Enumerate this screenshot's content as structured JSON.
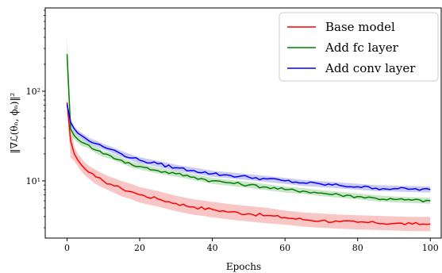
{
  "chart_data": {
    "type": "line",
    "xlabel": "Epochs",
    "ylabel": "‖∇ℒ(θₙ, ϕₙ)‖²",
    "xlim": [
      -6,
      103
    ],
    "ylim": [
      2.3,
      850
    ],
    "yscale": "log",
    "x_ticks": [
      0,
      20,
      40,
      60,
      80,
      100
    ],
    "y_ticks": [
      {
        "value": 10,
        "label": "10¹"
      },
      {
        "value": 100,
        "label": "10²"
      }
    ],
    "grid": false,
    "legend_position": "top-right",
    "x": [
      0,
      1,
      2,
      3,
      4,
      5,
      6,
      8,
      10,
      12,
      15,
      18,
      20,
      25,
      30,
      35,
      40,
      45,
      50,
      55,
      60,
      65,
      70,
      75,
      80,
      85,
      90,
      95,
      100
    ],
    "series": [
      {
        "name": "Base model",
        "color": "#ff0000",
        "band_color": "#f7b3b3",
        "values": [
          75,
          28,
          20,
          17,
          15,
          13.5,
          12.5,
          11,
          10,
          9.2,
          8.2,
          7.5,
          7,
          6.3,
          5.6,
          5.1,
          4.8,
          4.5,
          4.3,
          4.1,
          3.9,
          3.7,
          3.6,
          3.5,
          3.45,
          3.4,
          3.35,
          3.3,
          3.3
        ],
        "band": [
          0.13,
          0.55,
          0.2,
          0.18,
          0.18,
          0.18,
          0.18,
          0.2,
          0.2,
          0.2,
          0.22,
          0.22,
          0.22,
          0.22,
          0.22,
          0.22,
          0.22,
          0.22,
          0.22,
          0.22,
          0.2,
          0.2,
          0.2,
          0.2,
          0.2,
          0.2,
          0.2,
          0.2,
          0.2
        ]
      },
      {
        "name": "Add fc layer",
        "color": "#008000",
        "band_color": "#b8dcb8",
        "values": [
          260,
          38,
          32,
          29,
          27,
          26,
          25,
          22,
          20,
          19,
          17,
          15,
          14.5,
          13,
          12,
          11,
          10,
          9.5,
          9,
          8.5,
          8,
          7.7,
          7.3,
          7,
          6.7,
          6.4,
          6.2,
          6.1,
          6
        ],
        "band": [
          0.6,
          0.2,
          0.1,
          0.1,
          0.1,
          0.09,
          0.09,
          0.09,
          0.08,
          0.08,
          0.08,
          0.08,
          0.08,
          0.08,
          0.08,
          0.08,
          0.08,
          0.08,
          0.08,
          0.08,
          0.08,
          0.08,
          0.08,
          0.08,
          0.08,
          0.08,
          0.08,
          0.08,
          0.08
        ]
      },
      {
        "name": "Add conv layer",
        "color": "#0000ff",
        "band_color": "#b8b8f2",
        "values": [
          72,
          45,
          38,
          34,
          32,
          30,
          28,
          26,
          24,
          22.5,
          20,
          18,
          17,
          15.5,
          14,
          13,
          12,
          11.5,
          11,
          10.5,
          10,
          9.5,
          9.2,
          8.9,
          8.6,
          8.3,
          8.2,
          8.1,
          8
        ]
      }
    ]
  }
}
